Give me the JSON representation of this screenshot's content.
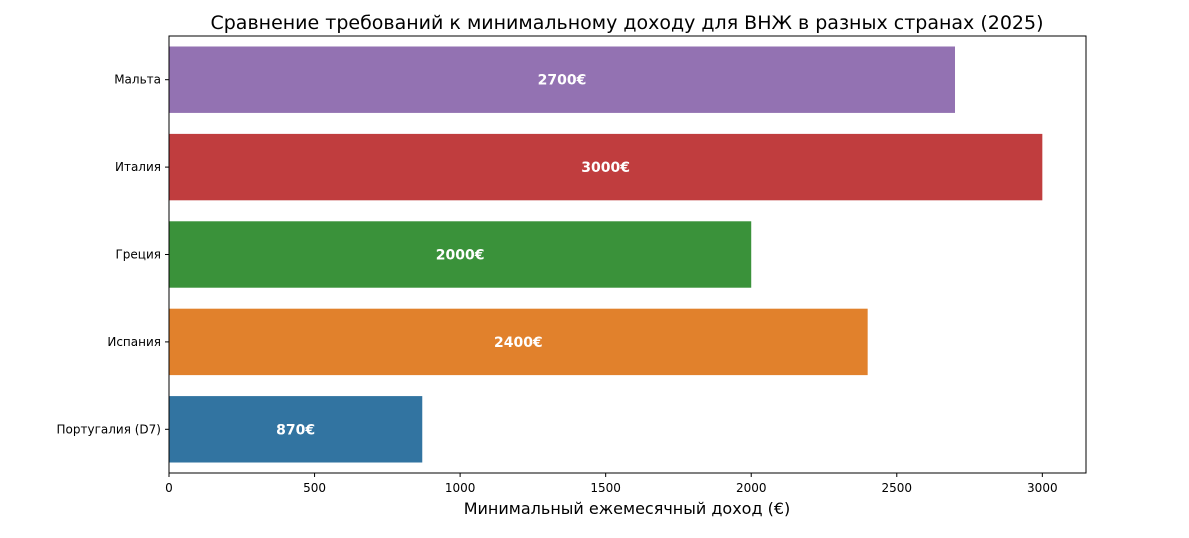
{
  "chart_data": {
    "type": "bar",
    "orientation": "horizontal",
    "title": "Сравнение требований к минимальному доходу для ВНЖ в разных странах (2025)",
    "xlabel": "Минимальный ежемесячный доход (€)",
    "ylabel": "",
    "xlim": [
      0,
      3150
    ],
    "xticks": [
      "0",
      "500",
      "1000",
      "1500",
      "2000",
      "2500",
      "3000"
    ],
    "categories": [
      "Португалия (D7)",
      "Испания",
      "Греция",
      "Италия",
      "Мальта"
    ],
    "values": [
      870,
      2400,
      2000,
      3000,
      2700
    ],
    "data_labels": [
      "870€",
      "2400€",
      "2000€",
      "3000€",
      "2700€"
    ],
    "colors": [
      "#3274a1",
      "#e1812c",
      "#3a923a",
      "#c03d3e",
      "#9372b2"
    ],
    "grid": false,
    "legend": "none"
  }
}
